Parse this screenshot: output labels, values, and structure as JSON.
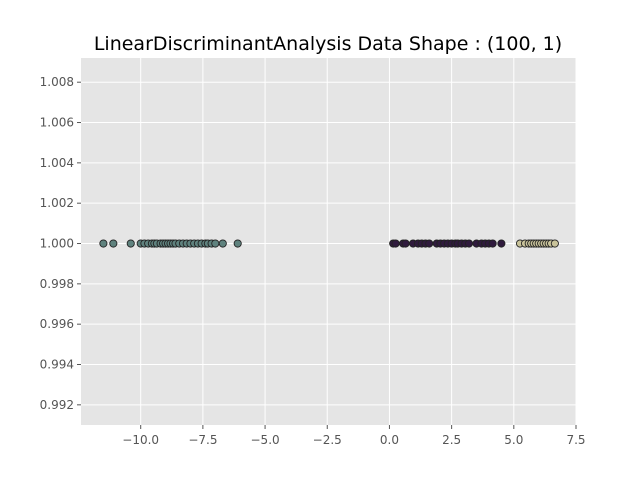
{
  "chart_data": {
    "type": "scatter",
    "title": "LinearDiscriminantAnalysis Data Shape : (100, 1)",
    "xlabel": "",
    "ylabel": "",
    "xlim": [
      -12.4,
      7.5
    ],
    "ylim": [
      0.991,
      1.0092
    ],
    "x_ticks": [
      -10.0,
      -7.5,
      -5.0,
      -2.5,
      0.0,
      2.5,
      5.0,
      7.5
    ],
    "x_tick_labels": [
      "−10.0",
      "−7.5",
      "−5.0",
      "−2.5",
      "0.0",
      "2.5",
      "5.0",
      "7.5"
    ],
    "y_ticks": [
      0.992,
      0.994,
      0.996,
      0.998,
      1.0,
      1.002,
      1.004,
      1.006,
      1.008
    ],
    "y_tick_labels": [
      "0.992",
      "0.994",
      "0.996",
      "0.998",
      "1.000",
      "1.002",
      "1.004",
      "1.006",
      "1.008"
    ],
    "grid": true,
    "style": "ggplot",
    "plot_background": "#e5e5e5",
    "grid_color": "#ffffff",
    "marker_edge_color": "#222222",
    "series": [
      {
        "color": "#5f827e",
        "x": [
          -11.5,
          -11.1,
          -10.4,
          -10.0,
          -9.85,
          -9.7,
          -9.55,
          -9.45,
          -9.35,
          -9.2,
          -9.1,
          -9.0,
          -8.9,
          -8.8,
          -8.7,
          -8.6,
          -8.45,
          -8.3,
          -8.15,
          -8.0,
          -7.85,
          -7.7,
          -7.55,
          -7.4,
          -7.3,
          -7.15,
          -7.0,
          -6.7,
          -6.1
        ],
        "y": [
          1.0,
          1.0,
          1.0,
          1.0,
          1.0,
          1.0,
          1.0,
          1.0,
          1.0,
          1.0,
          1.0,
          1.0,
          1.0,
          1.0,
          1.0,
          1.0,
          1.0,
          1.0,
          1.0,
          1.0,
          1.0,
          1.0,
          1.0,
          1.0,
          1.0,
          1.0,
          1.0,
          1.0,
          1.0
        ]
      },
      {
        "color": "#2f1a3d",
        "x": [
          0.15,
          0.25,
          0.55,
          0.65,
          0.95,
          1.15,
          1.3,
          1.45,
          1.6,
          1.9,
          2.05,
          2.2,
          2.35,
          2.5,
          2.65,
          2.75,
          2.9,
          3.05,
          3.2,
          3.5,
          3.7,
          3.85,
          4.0,
          4.15,
          4.5
        ],
        "y": [
          1.0,
          1.0,
          1.0,
          1.0,
          1.0,
          1.0,
          1.0,
          1.0,
          1.0,
          1.0,
          1.0,
          1.0,
          1.0,
          1.0,
          1.0,
          1.0,
          1.0,
          1.0,
          1.0,
          1.0,
          1.0,
          1.0,
          1.0,
          1.0,
          1.0
        ]
      },
      {
        "color": "#c9c39a",
        "x": [
          5.25,
          5.45,
          5.6,
          5.7,
          5.8,
          5.9,
          6.0,
          6.1,
          6.2,
          6.3,
          6.4,
          6.5,
          6.65
        ],
        "y": [
          1.0,
          1.0,
          1.0,
          1.0,
          1.0,
          1.0,
          1.0,
          1.0,
          1.0,
          1.0,
          1.0,
          1.0,
          1.0
        ]
      }
    ]
  }
}
